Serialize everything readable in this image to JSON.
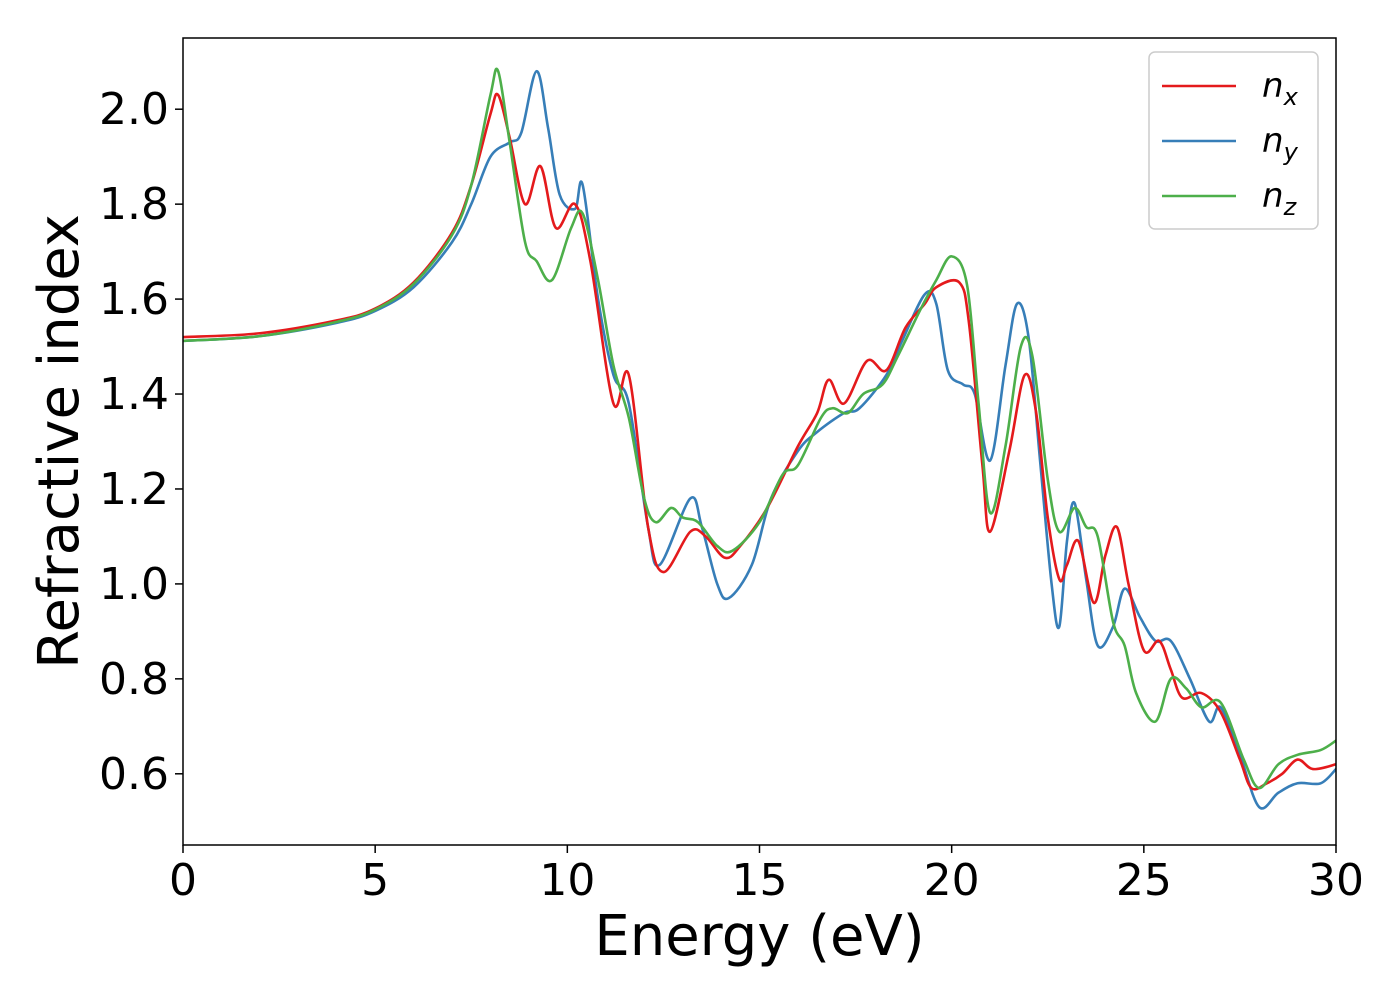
{
  "chart_data": {
    "type": "line",
    "title": "",
    "xlabel": "Energy (eV)",
    "ylabel": "Refractive index",
    "xlim": [
      0,
      30
    ],
    "ylim": [
      0.45,
      2.15
    ],
    "x_ticks": [
      0,
      5,
      10,
      15,
      20,
      25,
      30
    ],
    "x_tick_labels": [
      "0",
      "5",
      "10",
      "15",
      "20",
      "25",
      "30"
    ],
    "y_ticks": [
      0.6,
      0.8,
      1.0,
      1.2,
      1.4,
      1.6,
      1.8,
      2.0
    ],
    "y_tick_labels": [
      "0.6",
      "0.8",
      "1.0",
      "1.2",
      "1.4",
      "1.6",
      "1.8",
      "2.0"
    ],
    "grid": false,
    "legend_position": "top-right",
    "series": [
      {
        "name": "n",
        "sub": "x",
        "color": "#e41a1c",
        "points": [
          [
            0,
            1.52
          ],
          [
            2,
            1.528
          ],
          [
            4,
            1.555
          ],
          [
            5,
            1.58
          ],
          [
            6,
            1.635
          ],
          [
            7,
            1.74
          ],
          [
            7.5,
            1.84
          ],
          [
            8,
            1.99
          ],
          [
            8.2,
            2.03
          ],
          [
            8.5,
            1.94
          ],
          [
            8.9,
            1.8
          ],
          [
            9.3,
            1.88
          ],
          [
            9.7,
            1.75
          ],
          [
            10.2,
            1.8
          ],
          [
            10.6,
            1.68
          ],
          [
            11.2,
            1.38
          ],
          [
            11.6,
            1.44
          ],
          [
            12.1,
            1.12
          ],
          [
            12.5,
            1.025
          ],
          [
            13.2,
            1.11
          ],
          [
            13.6,
            1.1
          ],
          [
            14.1,
            1.055
          ],
          [
            14.5,
            1.08
          ],
          [
            15.2,
            1.16
          ],
          [
            16,
            1.29
          ],
          [
            16.5,
            1.36
          ],
          [
            16.8,
            1.43
          ],
          [
            17.2,
            1.38
          ],
          [
            17.8,
            1.47
          ],
          [
            18.3,
            1.45
          ],
          [
            18.8,
            1.54
          ],
          [
            19.3,
            1.59
          ],
          [
            19.6,
            1.625
          ],
          [
            20.2,
            1.635
          ],
          [
            20.45,
            1.55
          ],
          [
            20.8,
            1.25
          ],
          [
            21.0,
            1.11
          ],
          [
            21.5,
            1.28
          ],
          [
            21.9,
            1.44
          ],
          [
            22.2,
            1.36
          ],
          [
            22.5,
            1.14
          ],
          [
            22.8,
            1.01
          ],
          [
            23.0,
            1.04
          ],
          [
            23.3,
            1.09
          ],
          [
            23.7,
            0.96
          ],
          [
            24.0,
            1.06
          ],
          [
            24.3,
            1.12
          ],
          [
            24.6,
            1.0
          ],
          [
            25.0,
            0.86
          ],
          [
            25.4,
            0.88
          ],
          [
            25.7,
            0.82
          ],
          [
            26.0,
            0.76
          ],
          [
            26.5,
            0.77
          ],
          [
            27.0,
            0.73
          ],
          [
            27.5,
            0.63
          ],
          [
            27.8,
            0.57
          ],
          [
            28.2,
            0.58
          ],
          [
            28.6,
            0.6
          ],
          [
            29.0,
            0.63
          ],
          [
            29.4,
            0.61
          ],
          [
            30,
            0.62
          ]
        ]
      },
      {
        "name": "n",
        "sub": "y",
        "color": "#377eb8",
        "points": [
          [
            0,
            1.512
          ],
          [
            2,
            1.522
          ],
          [
            4,
            1.55
          ],
          [
            5,
            1.575
          ],
          [
            6,
            1.625
          ],
          [
            7,
            1.72
          ],
          [
            7.5,
            1.8
          ],
          [
            8,
            1.9
          ],
          [
            8.5,
            1.93
          ],
          [
            8.8,
            1.95
          ],
          [
            9.2,
            2.08
          ],
          [
            9.5,
            1.96
          ],
          [
            9.8,
            1.82
          ],
          [
            10.2,
            1.79
          ],
          [
            10.4,
            1.84
          ],
          [
            10.8,
            1.6
          ],
          [
            11.2,
            1.44
          ],
          [
            11.6,
            1.38
          ],
          [
            12.1,
            1.12
          ],
          [
            12.4,
            1.04
          ],
          [
            13.2,
            1.18
          ],
          [
            13.5,
            1.12
          ],
          [
            13.9,
            1.0
          ],
          [
            14.2,
            0.97
          ],
          [
            14.8,
            1.04
          ],
          [
            15.3,
            1.18
          ],
          [
            16,
            1.28
          ],
          [
            16.5,
            1.32
          ],
          [
            17.2,
            1.36
          ],
          [
            17.6,
            1.37
          ],
          [
            18.3,
            1.44
          ],
          [
            18.7,
            1.51
          ],
          [
            19.3,
            1.61
          ],
          [
            19.6,
            1.59
          ],
          [
            19.9,
            1.45
          ],
          [
            20.3,
            1.42
          ],
          [
            20.6,
            1.4
          ],
          [
            21.0,
            1.26
          ],
          [
            21.4,
            1.46
          ],
          [
            21.7,
            1.59
          ],
          [
            22.0,
            1.52
          ],
          [
            22.3,
            1.26
          ],
          [
            22.6,
            1.0
          ],
          [
            22.8,
            0.91
          ],
          [
            23.0,
            1.09
          ],
          [
            23.2,
            1.17
          ],
          [
            23.5,
            1.01
          ],
          [
            23.8,
            0.87
          ],
          [
            24.2,
            0.91
          ],
          [
            24.5,
            0.99
          ],
          [
            24.9,
            0.93
          ],
          [
            25.3,
            0.88
          ],
          [
            25.7,
            0.88
          ],
          [
            26.2,
            0.8
          ],
          [
            26.7,
            0.71
          ],
          [
            27.0,
            0.74
          ],
          [
            27.5,
            0.64
          ],
          [
            28.0,
            0.53
          ],
          [
            28.5,
            0.56
          ],
          [
            29.0,
            0.58
          ],
          [
            29.6,
            0.58
          ],
          [
            30,
            0.61
          ]
        ]
      },
      {
        "name": "n",
        "sub": "z",
        "color": "#4daf4a",
        "points": [
          [
            0,
            1.512
          ],
          [
            2,
            1.522
          ],
          [
            4,
            1.552
          ],
          [
            5,
            1.578
          ],
          [
            6,
            1.632
          ],
          [
            7,
            1.735
          ],
          [
            7.5,
            1.84
          ],
          [
            8,
            2.03
          ],
          [
            8.2,
            2.08
          ],
          [
            8.5,
            1.93
          ],
          [
            8.9,
            1.72
          ],
          [
            9.2,
            1.68
          ],
          [
            9.6,
            1.64
          ],
          [
            10.1,
            1.75
          ],
          [
            10.4,
            1.78
          ],
          [
            10.8,
            1.64
          ],
          [
            11.2,
            1.46
          ],
          [
            11.6,
            1.35
          ],
          [
            12.0,
            1.18
          ],
          [
            12.3,
            1.13
          ],
          [
            12.7,
            1.16
          ],
          [
            13.0,
            1.14
          ],
          [
            13.4,
            1.13
          ],
          [
            13.9,
            1.08
          ],
          [
            14.3,
            1.07
          ],
          [
            15.0,
            1.13
          ],
          [
            15.6,
            1.23
          ],
          [
            16,
            1.25
          ],
          [
            16.6,
            1.35
          ],
          [
            16.9,
            1.37
          ],
          [
            17.3,
            1.36
          ],
          [
            17.7,
            1.4
          ],
          [
            18.2,
            1.42
          ],
          [
            18.6,
            1.48
          ],
          [
            19.2,
            1.58
          ],
          [
            19.6,
            1.64
          ],
          [
            20.0,
            1.69
          ],
          [
            20.4,
            1.63
          ],
          [
            20.7,
            1.38
          ],
          [
            21.0,
            1.15
          ],
          [
            21.4,
            1.29
          ],
          [
            21.8,
            1.5
          ],
          [
            22.1,
            1.48
          ],
          [
            22.5,
            1.22
          ],
          [
            22.8,
            1.11
          ],
          [
            23.2,
            1.16
          ],
          [
            23.5,
            1.12
          ],
          [
            23.8,
            1.1
          ],
          [
            24.2,
            0.92
          ],
          [
            24.5,
            0.87
          ],
          [
            24.8,
            0.77
          ],
          [
            25.3,
            0.71
          ],
          [
            25.7,
            0.8
          ],
          [
            26.1,
            0.78
          ],
          [
            26.5,
            0.74
          ],
          [
            27.0,
            0.75
          ],
          [
            27.6,
            0.63
          ],
          [
            28.0,
            0.57
          ],
          [
            28.5,
            0.62
          ],
          [
            29.0,
            0.64
          ],
          [
            29.6,
            0.65
          ],
          [
            30,
            0.67
          ]
        ]
      }
    ]
  }
}
